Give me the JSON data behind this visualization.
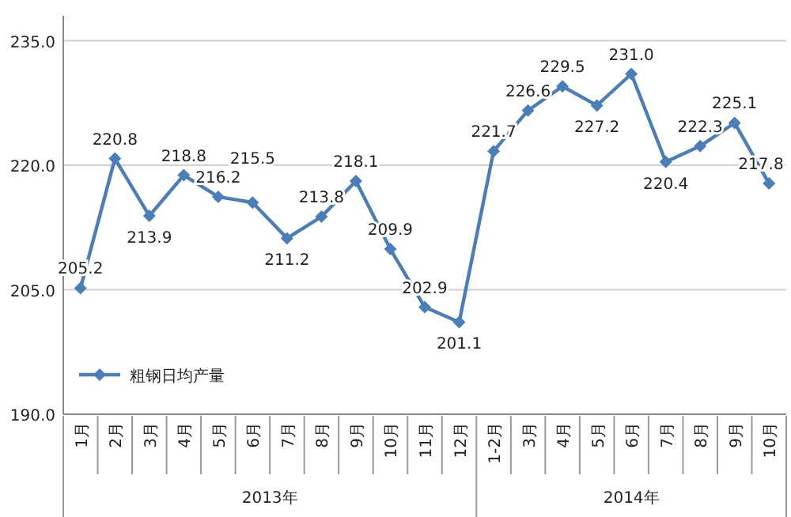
{
  "chart_data": {
    "type": "line",
    "categories": [
      "1月",
      "2月",
      "3月",
      "4月",
      "5月",
      "6月",
      "7月",
      "8月",
      "9月",
      "10月",
      "11月",
      "12月",
      "1-2月",
      "3月",
      "4月",
      "5月",
      "6月",
      "7月",
      "8月",
      "9月",
      "10月"
    ],
    "series": [
      {
        "name": "粗钢日均产量",
        "color": "#4a7ebb",
        "values": [
          205.2,
          220.8,
          213.9,
          218.8,
          216.2,
          215.5,
          211.2,
          213.8,
          218.1,
          209.9,
          202.9,
          201.1,
          221.7,
          226.6,
          229.5,
          227.2,
          231.0,
          220.4,
          222.3,
          225.1,
          217.8
        ],
        "value_labels": [
          "205.2",
          "220.8",
          "213.9",
          "218.8",
          "216.2",
          "215.5",
          "211.2",
          "213.8",
          "218.1",
          "209.9",
          "202.9",
          "201.1",
          "221.7",
          "226.6",
          "229.5",
          "227.2",
          "231.0",
          "220.4",
          "222.3",
          "225.1",
          "217.8"
        ]
      }
    ],
    "ylim": [
      190,
      238
    ],
    "yticks": [
      {
        "value": 190,
        "label": "190.0"
      },
      {
        "value": 205,
        "label": "205.0"
      },
      {
        "value": 220,
        "label": "220.0"
      },
      {
        "value": 235,
        "label": "235.0"
      }
    ],
    "grid": "y",
    "legend": "bottom left",
    "marker": "diamond",
    "line_style": "solid",
    "annotations": [
      "2013年",
      "2014年"
    ]
  }
}
